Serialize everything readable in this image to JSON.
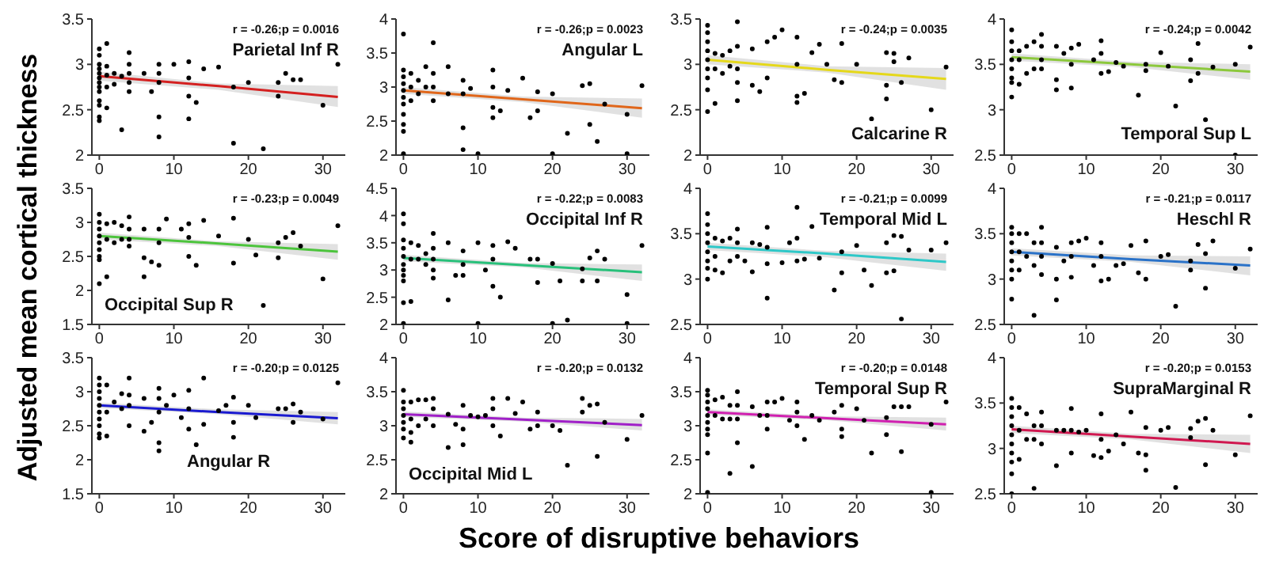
{
  "chart_data": [
    {
      "type": "scatter",
      "xlabel": "Score of disruptive behaviors",
      "ylabel": "Adjusted mean cortical thickness",
      "annotations": [
        "r = -0.26;p = 0.0016",
        "Parietal Inf R"
      ],
      "xlim": [
        -1,
        33
      ],
      "xticks": [
        0,
        10,
        20,
        30
      ],
      "ylim": [
        2,
        3.5
      ],
      "yticks": [
        2,
        2.5,
        3,
        3.5
      ],
      "series": [
        {
          "marker": "circle",
          "color": "#000000",
          "x": [
            0,
            0,
            0,
            0,
            0,
            0,
            0,
            0,
            0,
            0,
            0,
            0,
            0,
            1,
            1,
            1,
            1,
            1,
            2,
            2,
            3,
            3,
            4,
            4,
            4,
            4,
            4,
            6,
            7,
            8,
            8,
            8,
            8,
            8,
            10,
            12,
            12,
            12,
            12,
            13,
            14,
            16,
            18,
            18,
            20,
            22,
            24,
            24,
            25,
            26,
            27,
            30,
            32
          ],
          "values": [
            3.17,
            3.1,
            3.0,
            2.95,
            2.9,
            2.85,
            2.8,
            2.75,
            2.7,
            2.6,
            2.55,
            2.42,
            2.38,
            3.23,
            2.98,
            2.88,
            2.75,
            2.52,
            2.9,
            2.78,
            2.87,
            2.28,
            3.13,
            3.0,
            2.9,
            2.8,
            2.7,
            2.9,
            2.7,
            3.0,
            2.9,
            2.8,
            2.42,
            2.2,
            3.0,
            3.03,
            2.85,
            2.65,
            2.4,
            2.58,
            2.95,
            2.97,
            2.75,
            2.13,
            2.8,
            2.07,
            2.8,
            2.65,
            2.9,
            2.83,
            2.83,
            2.55,
            3.0
          ]
        },
        {
          "type": "line",
          "marker": "none",
          "color": "#d42020",
          "x": [
            0,
            16,
            32
          ],
          "values": [
            2.87,
            2.76,
            2.64
          ],
          "lower": [
            2.82,
            2.72,
            2.53
          ],
          "upper": [
            2.92,
            2.79,
            2.76
          ]
        }
      ]
    },
    {
      "type": "scatter",
      "annotations": [
        "r = -0.26;p = 0.0023",
        "Angular L"
      ],
      "xlim": [
        -1,
        33
      ],
      "xticks": [
        0,
        10,
        20,
        30
      ],
      "ylim": [
        2,
        4
      ],
      "yticks": [
        2,
        2.5,
        3,
        3.5,
        4
      ],
      "series": [
        {
          "marker": "circle",
          "color": "#000000",
          "x": [
            0,
            0,
            0,
            0,
            0,
            0,
            0,
            0,
            0,
            0,
            0,
            1,
            1,
            1,
            2,
            2,
            3,
            3,
            4,
            4,
            4,
            4,
            6,
            6,
            8,
            8,
            8,
            8,
            9,
            10,
            12,
            12,
            12,
            12,
            13,
            14,
            16,
            17,
            18,
            18,
            20,
            20,
            22,
            24,
            25,
            25,
            26,
            27,
            30,
            30,
            32
          ],
          "values": [
            3.78,
            3.25,
            3.15,
            3.05,
            2.95,
            2.85,
            2.75,
            2.6,
            2.45,
            2.35,
            2.02,
            3.2,
            3.0,
            2.8,
            3.1,
            2.9,
            3.3,
            3.0,
            3.65,
            3.2,
            3.0,
            2.8,
            3.3,
            2.9,
            3.1,
            2.9,
            2.4,
            2.08,
            2.98,
            2.02,
            3.25,
            3.0,
            2.7,
            2.55,
            2.65,
            2.95,
            3.13,
            2.55,
            2.93,
            2.65,
            2.9,
            2.02,
            2.32,
            3.02,
            3.05,
            2.45,
            2.2,
            2.75,
            2.6,
            2.02,
            3.02
          ]
        },
        {
          "type": "line",
          "marker": "none",
          "color": "#e0661a",
          "x": [
            0,
            16,
            32
          ],
          "values": [
            2.95,
            2.82,
            2.69
          ],
          "lower": [
            2.9,
            2.78,
            2.55
          ],
          "upper": [
            3.0,
            2.86,
            2.83
          ]
        }
      ]
    },
    {
      "type": "scatter",
      "annotations": [
        "r = -0.24;p = 0.0035",
        "Calcarine R"
      ],
      "xlim": [
        -1,
        33
      ],
      "xticks": [
        0,
        10,
        20,
        30
      ],
      "ylim": [
        2,
        3.5
      ],
      "yticks": [
        2,
        2.5,
        3,
        3.5
      ],
      "series": [
        {
          "marker": "circle",
          "color": "#000000",
          "x": [
            0,
            0,
            0,
            0,
            0,
            0,
            0,
            0,
            0,
            1,
            1,
            1,
            2,
            2,
            3,
            3,
            4,
            4,
            4,
            4,
            4,
            6,
            6,
            7,
            8,
            8,
            9,
            10,
            12,
            12,
            12,
            12,
            13,
            14,
            15,
            16,
            17,
            18,
            18,
            20,
            22,
            24,
            24,
            24,
            25,
            25,
            26,
            27,
            30,
            32
          ],
          "values": [
            3.43,
            3.35,
            3.25,
            3.15,
            3.05,
            2.95,
            2.85,
            2.72,
            2.48,
            3.12,
            2.95,
            2.57,
            3.1,
            2.9,
            3.15,
            2.98,
            3.47,
            3.2,
            2.95,
            2.8,
            2.6,
            3.17,
            2.77,
            2.7,
            3.25,
            2.85,
            3.3,
            3.38,
            3.3,
            3.0,
            2.65,
            2.58,
            2.68,
            3.13,
            3.22,
            3.0,
            2.83,
            3.23,
            2.8,
            3.0,
            2.4,
            3.13,
            2.77,
            2.62,
            3.12,
            3.03,
            2.8,
            3.07,
            2.5,
            2.97
          ]
        },
        {
          "type": "line",
          "marker": "none",
          "color": "#e5d81a",
          "x": [
            0,
            16,
            32
          ],
          "values": [
            3.05,
            2.94,
            2.84
          ],
          "lower": [
            3.0,
            2.91,
            2.72
          ],
          "upper": [
            3.1,
            2.98,
            2.96
          ]
        }
      ]
    },
    {
      "type": "scatter",
      "annotations": [
        "r = -0.24;p = 0.0042",
        "Temporal Sup L"
      ],
      "xlim": [
        -1,
        33
      ],
      "xticks": [
        0,
        10,
        20,
        30
      ],
      "ylim": [
        2.5,
        4
      ],
      "yticks": [
        2.5,
        3,
        3.5,
        4
      ],
      "series": [
        {
          "marker": "circle",
          "color": "#000000",
          "x": [
            0,
            0,
            0,
            0,
            0,
            0,
            0,
            0,
            1,
            1,
            1,
            2,
            2,
            3,
            3,
            4,
            4,
            4,
            4,
            6,
            6,
            6,
            7,
            8,
            8,
            8,
            9,
            11,
            12,
            12,
            12,
            13,
            14,
            15,
            17,
            18,
            18,
            20,
            21,
            22,
            24,
            24,
            25,
            25,
            26,
            27,
            30,
            30,
            32
          ],
          "values": [
            3.88,
            3.75,
            3.65,
            3.55,
            3.45,
            3.35,
            3.3,
            3.14,
            3.65,
            3.55,
            3.28,
            3.7,
            3.4,
            3.75,
            3.45,
            3.83,
            3.7,
            3.55,
            3.45,
            3.7,
            3.33,
            3.22,
            3.62,
            3.68,
            3.5,
            3.24,
            3.72,
            3.55,
            3.76,
            3.62,
            3.4,
            3.42,
            3.52,
            3.48,
            3.16,
            3.5,
            3.43,
            3.63,
            3.48,
            3.04,
            3.55,
            3.32,
            3.73,
            3.4,
            2.89,
            3.47,
            3.5,
            2.5,
            3.69
          ]
        },
        {
          "type": "line",
          "marker": "none",
          "color": "#8cc83c",
          "x": [
            0,
            16,
            32
          ],
          "values": [
            3.58,
            3.5,
            3.42
          ],
          "lower": [
            3.54,
            3.47,
            3.33
          ],
          "upper": [
            3.62,
            3.53,
            3.5
          ]
        }
      ]
    },
    {
      "type": "scatter",
      "annotations": [
        "r = -0.23;p = 0.0049",
        "Occipital Sup R"
      ],
      "xlim": [
        -1,
        33
      ],
      "xticks": [
        0,
        10,
        20,
        30
      ],
      "ylim": [
        1.5,
        3.5
      ],
      "yticks": [
        1.5,
        2,
        2.5,
        3,
        3.5
      ],
      "series": [
        {
          "marker": "circle",
          "color": "#000000",
          "x": [
            0,
            0,
            0,
            0,
            0,
            0,
            0,
            0,
            0,
            1,
            1,
            1,
            2,
            2,
            3,
            3,
            4,
            4,
            4,
            4,
            6,
            6,
            6,
            7,
            8,
            8,
            8,
            9,
            11,
            12,
            12,
            12,
            13,
            14,
            16,
            18,
            18,
            20,
            21,
            22,
            24,
            24,
            25,
            26,
            27,
            30,
            32
          ],
          "values": [
            3.12,
            3.0,
            2.9,
            2.8,
            2.7,
            2.6,
            2.5,
            2.45,
            2.1,
            2.98,
            2.75,
            2.2,
            3.0,
            2.7,
            2.95,
            2.75,
            3.08,
            2.9,
            2.75,
            2.65,
            2.9,
            2.48,
            2.2,
            2.42,
            2.9,
            2.7,
            2.37,
            3.05,
            2.9,
            2.98,
            2.78,
            2.5,
            2.37,
            3.03,
            2.8,
            3.06,
            2.4,
            2.75,
            2.52,
            1.78,
            2.7,
            2.48,
            2.78,
            2.85,
            2.65,
            2.17,
            2.95
          ]
        },
        {
          "type": "line",
          "marker": "none",
          "color": "#4cc43c",
          "x": [
            0,
            16,
            32
          ],
          "values": [
            2.8,
            2.69,
            2.57
          ],
          "lower": [
            2.75,
            2.65,
            2.45
          ],
          "upper": [
            2.85,
            2.72,
            2.68
          ]
        }
      ]
    },
    {
      "type": "scatter",
      "annotations": [
        "r = -0.22;p = 0.0083",
        "Occipital Inf R"
      ],
      "xlim": [
        -1,
        33
      ],
      "xticks": [
        0,
        10,
        20,
        30
      ],
      "ylim": [
        2,
        4.5
      ],
      "yticks": [
        2,
        2.5,
        3,
        3.5,
        4,
        4.5
      ],
      "series": [
        {
          "marker": "circle",
          "color": "#000000",
          "x": [
            0,
            0,
            0,
            0,
            0,
            0,
            0,
            0,
            0,
            0,
            0,
            1,
            1,
            1,
            2,
            2,
            3,
            3,
            4,
            4,
            4,
            4,
            4,
            6,
            6,
            7,
            8,
            8,
            8,
            10,
            10,
            11,
            12,
            12,
            12,
            13,
            14,
            15,
            17,
            18,
            18,
            20,
            20,
            21,
            22,
            24,
            24,
            25,
            26,
            26,
            27,
            30,
            30,
            32
          ],
          "values": [
            4.03,
            3.85,
            3.55,
            3.4,
            3.25,
            3.1,
            3.0,
            2.9,
            2.8,
            2.4,
            2.02,
            3.5,
            3.2,
            2.42,
            3.45,
            3.2,
            3.3,
            3.1,
            3.67,
            3.4,
            3.2,
            3.0,
            2.85,
            3.5,
            2.45,
            2.9,
            3.35,
            3.1,
            2.9,
            3.5,
            2.02,
            3.0,
            3.45,
            3.2,
            2.7,
            2.5,
            3.52,
            3.4,
            3.2,
            3.2,
            2.77,
            3.12,
            2.02,
            2.8,
            2.08,
            3.02,
            2.8,
            3.22,
            3.35,
            2.8,
            3.2,
            2.55,
            2.02,
            3.45
          ]
        },
        {
          "type": "line",
          "marker": "none",
          "color": "#28c07a",
          "x": [
            0,
            16,
            32
          ],
          "values": [
            3.22,
            3.09,
            2.96
          ],
          "lower": [
            3.16,
            3.05,
            2.8
          ],
          "upper": [
            3.28,
            3.13,
            3.1
          ]
        }
      ]
    },
    {
      "type": "scatter",
      "annotations": [
        "r = -0.21;p = 0.0099",
        "Temporal Mid L"
      ],
      "xlim": [
        -1,
        33
      ],
      "xticks": [
        0,
        10,
        20,
        30
      ],
      "ylim": [
        2.5,
        4
      ],
      "yticks": [
        2.5,
        3,
        3.5,
        4
      ],
      "series": [
        {
          "marker": "circle",
          "color": "#000000",
          "x": [
            0,
            0,
            0,
            0,
            0,
            0,
            0,
            0,
            1,
            1,
            1,
            2,
            2,
            3,
            3,
            4,
            4,
            4,
            5,
            6,
            6,
            7,
            8,
            8,
            8,
            8,
            10,
            11,
            12,
            12,
            12,
            13,
            14,
            15,
            17,
            18,
            18,
            20,
            21,
            22,
            24,
            24,
            25,
            25,
            26,
            26,
            27,
            30,
            32
          ],
          "values": [
            3.72,
            3.6,
            3.5,
            3.4,
            3.3,
            3.2,
            3.12,
            3.0,
            3.45,
            3.25,
            3.1,
            3.42,
            3.07,
            3.45,
            3.2,
            3.55,
            3.4,
            3.25,
            3.2,
            3.4,
            3.08,
            3.38,
            3.57,
            3.35,
            3.17,
            2.79,
            3.18,
            3.4,
            3.79,
            3.45,
            3.2,
            3.22,
            3.58,
            3.23,
            2.88,
            3.3,
            3.07,
            3.37,
            3.1,
            2.93,
            3.4,
            3.07,
            3.48,
            3.09,
            3.47,
            2.56,
            3.32,
            3.32,
            3.4
          ]
        },
        {
          "type": "line",
          "marker": "none",
          "color": "#2ec8c8",
          "x": [
            0,
            16,
            32
          ],
          "values": [
            3.36,
            3.28,
            3.19
          ],
          "lower": [
            3.32,
            3.24,
            3.09
          ],
          "upper": [
            3.4,
            3.31,
            3.28
          ]
        }
      ]
    },
    {
      "type": "scatter",
      "annotations": [
        "r = -0.21;p = 0.0117",
        "Heschl R"
      ],
      "xlim": [
        -1,
        33
      ],
      "xticks": [
        0,
        10,
        20,
        30
      ],
      "ylim": [
        2.5,
        4
      ],
      "yticks": [
        2.5,
        3,
        3.5,
        4
      ],
      "series": [
        {
          "marker": "circle",
          "color": "#000000",
          "x": [
            0,
            0,
            0,
            0,
            0,
            0,
            0,
            0,
            1,
            1,
            1,
            2,
            2,
            3,
            3,
            3,
            4,
            4,
            4,
            4,
            6,
            6,
            6,
            7,
            8,
            8,
            8,
            9,
            10,
            11,
            12,
            12,
            12,
            13,
            14,
            15,
            16,
            17,
            18,
            18,
            20,
            21,
            22,
            24,
            24,
            25,
            26,
            26,
            27,
            30,
            32
          ],
          "values": [
            3.57,
            3.5,
            3.4,
            3.3,
            3.2,
            3.1,
            3.0,
            2.78,
            3.5,
            3.3,
            3.1,
            3.5,
            3.25,
            3.4,
            3.15,
            2.6,
            3.57,
            3.4,
            3.25,
            3.05,
            3.35,
            3.0,
            2.77,
            3.2,
            3.4,
            3.25,
            3.02,
            3.42,
            3.45,
            3.15,
            3.4,
            3.25,
            2.98,
            3.0,
            3.15,
            3.17,
            3.37,
            3.07,
            3.42,
            3.0,
            3.25,
            3.27,
            2.7,
            3.2,
            3.1,
            3.38,
            3.28,
            2.9,
            3.42,
            3.12,
            3.33
          ]
        },
        {
          "type": "line",
          "marker": "none",
          "color": "#2a72c8",
          "x": [
            0,
            16,
            32
          ],
          "values": [
            3.3,
            3.22,
            3.15
          ],
          "lower": [
            3.26,
            3.19,
            3.04
          ],
          "upper": [
            3.34,
            3.26,
            3.25
          ]
        }
      ]
    },
    {
      "type": "scatter",
      "annotations": [
        "r = -0.20;p = 0.0125",
        "Angular R"
      ],
      "xlim": [
        -1,
        33
      ],
      "xticks": [
        0,
        10,
        20,
        30
      ],
      "ylim": [
        1.5,
        3.5
      ],
      "yticks": [
        1.5,
        2,
        2.5,
        3,
        3.5
      ],
      "series": [
        {
          "marker": "circle",
          "color": "#000000",
          "x": [
            0,
            0,
            0,
            0,
            0,
            0,
            0,
            0,
            0,
            0,
            1,
            1,
            1,
            2,
            3,
            3,
            4,
            4,
            4,
            4,
            6,
            6,
            7,
            8,
            8,
            8,
            8,
            8,
            9,
            10,
            11,
            12,
            12,
            12,
            13,
            14,
            14,
            16,
            17,
            18,
            18,
            18,
            20,
            21,
            24,
            25,
            26,
            26,
            27,
            30,
            32
          ],
          "values": [
            3.2,
            3.1,
            3.0,
            2.9,
            2.8,
            2.7,
            2.6,
            2.5,
            2.38,
            2.32,
            3.1,
            2.7,
            2.35,
            2.85,
            2.97,
            2.75,
            3.2,
            2.95,
            2.8,
            2.5,
            2.9,
            2.42,
            2.55,
            3.05,
            2.9,
            2.7,
            2.25,
            2.13,
            2.8,
            2.95,
            2.62,
            3.02,
            2.75,
            2.45,
            2.22,
            3.2,
            2.52,
            2.72,
            2.8,
            2.92,
            2.55,
            2.33,
            2.8,
            2.62,
            2.75,
            2.75,
            2.82,
            2.55,
            2.7,
            2.6,
            3.13
          ]
        },
        {
          "type": "line",
          "marker": "none",
          "color": "#1a1ad0",
          "x": [
            0,
            16,
            32
          ],
          "values": [
            2.8,
            2.7,
            2.61
          ],
          "lower": [
            2.76,
            2.67,
            2.52
          ],
          "upper": [
            2.84,
            2.74,
            2.7
          ]
        }
      ]
    },
    {
      "type": "scatter",
      "annotations": [
        "r = -0.20;p = 0.0132",
        "Occipital Mid L"
      ],
      "xlim": [
        -1,
        33
      ],
      "xticks": [
        0,
        10,
        20,
        30
      ],
      "ylim": [
        2,
        4
      ],
      "yticks": [
        2,
        2.5,
        3,
        3.5,
        4
      ],
      "series": [
        {
          "marker": "circle",
          "color": "#000000",
          "x": [
            0,
            0,
            0,
            0,
            0,
            0,
            0,
            1,
            1,
            1,
            1,
            2,
            2,
            3,
            3,
            4,
            4,
            4,
            6,
            6,
            7,
            8,
            8,
            8,
            9,
            10,
            11,
            12,
            12,
            12,
            13,
            14,
            15,
            16,
            17,
            18,
            18,
            20,
            21,
            22,
            24,
            24,
            25,
            26,
            26,
            27,
            30,
            32
          ],
          "values": [
            3.52,
            3.35,
            3.25,
            3.15,
            3.05,
            2.95,
            2.82,
            3.35,
            3.1,
            2.9,
            2.76,
            3.38,
            3.0,
            3.38,
            3.1,
            3.4,
            3.25,
            3.0,
            3.17,
            2.68,
            3.02,
            3.3,
            2.95,
            2.72,
            3.15,
            3.13,
            3.15,
            3.4,
            3.25,
            3.0,
            2.85,
            3.4,
            3.18,
            3.35,
            2.95,
            3.2,
            3.0,
            3.0,
            2.93,
            2.42,
            3.4,
            3.2,
            3.3,
            3.32,
            2.55,
            3.05,
            2.8,
            3.15
          ]
        },
        {
          "type": "line",
          "marker": "none",
          "color": "#a020c8",
          "x": [
            0,
            16,
            32
          ],
          "values": [
            3.17,
            3.09,
            3.01
          ],
          "lower": [
            3.13,
            3.06,
            2.93
          ],
          "upper": [
            3.21,
            3.12,
            3.1
          ]
        }
      ]
    },
    {
      "type": "scatter",
      "annotations": [
        "r = -0.20;p = 0.0148",
        "Temporal Sup R"
      ],
      "xlim": [
        -1,
        33
      ],
      "xticks": [
        0,
        10,
        20,
        30
      ],
      "ylim": [
        2,
        4
      ],
      "yticks": [
        2,
        2.5,
        3,
        3.5,
        4
      ],
      "series": [
        {
          "marker": "circle",
          "color": "#000000",
          "x": [
            0,
            0,
            0,
            0,
            0,
            0,
            0,
            0,
            0,
            0,
            1,
            1,
            2,
            2,
            3,
            3,
            3,
            4,
            4,
            4,
            4,
            6,
            6,
            7,
            8,
            8,
            8,
            9,
            10,
            11,
            12,
            12,
            12,
            13,
            14,
            15,
            17,
            18,
            18,
            18,
            20,
            21,
            22,
            24,
            24,
            25,
            26,
            26,
            27,
            30,
            30,
            32
          ],
          "values": [
            3.52,
            3.45,
            3.35,
            3.25,
            3.15,
            3.05,
            2.95,
            2.87,
            2.6,
            2.02,
            3.38,
            3.15,
            3.42,
            3.1,
            3.3,
            3.1,
            2.3,
            3.5,
            3.3,
            3.1,
            2.75,
            3.28,
            2.4,
            3.15,
            3.35,
            3.15,
            2.95,
            3.35,
            3.4,
            3.08,
            3.35,
            3.2,
            3.0,
            2.8,
            3.15,
            3.08,
            3.2,
            3.3,
            2.95,
            2.84,
            3.25,
            3.08,
            2.6,
            3.12,
            2.87,
            3.28,
            3.28,
            2.62,
            3.28,
            3.02,
            2.02,
            3.35
          ]
        },
        {
          "type": "line",
          "marker": "none",
          "color": "#d020b0",
          "x": [
            0,
            16,
            32
          ],
          "values": [
            3.2,
            3.11,
            3.02
          ],
          "lower": [
            3.16,
            3.08,
            2.93
          ],
          "upper": [
            3.24,
            3.14,
            3.12
          ]
        }
      ]
    },
    {
      "type": "scatter",
      "annotations": [
        "r = -0.20;p = 0.0153",
        "SupraMarginal R"
      ],
      "xlim": [
        -1,
        33
      ],
      "xticks": [
        0,
        10,
        20,
        30
      ],
      "ylim": [
        2.5,
        4
      ],
      "yticks": [
        2.5,
        3,
        3.5,
        4
      ],
      "series": [
        {
          "marker": "circle",
          "color": "#000000",
          "x": [
            0,
            0,
            0,
            0,
            0,
            0,
            0,
            0,
            0,
            0,
            1,
            1,
            1,
            2,
            2,
            3,
            3,
            3,
            4,
            4,
            4,
            6,
            6,
            7,
            8,
            8,
            8,
            9,
            10,
            11,
            12,
            12,
            12,
            13,
            14,
            15,
            16,
            17,
            18,
            18,
            18,
            20,
            21,
            22,
            24,
            24,
            25,
            26,
            26,
            27,
            30,
            32
          ],
          "values": [
            3.55,
            3.45,
            3.35,
            3.25,
            3.15,
            3.05,
            2.95,
            2.85,
            2.72,
            2.5,
            3.45,
            3.2,
            2.88,
            3.38,
            3.1,
            3.25,
            3.1,
            2.56,
            3.4,
            3.25,
            3.05,
            3.2,
            2.81,
            3.2,
            3.44,
            3.2,
            2.95,
            3.18,
            3.2,
            2.92,
            3.38,
            3.1,
            2.9,
            2.97,
            3.15,
            3.05,
            3.4,
            2.95,
            3.23,
            2.93,
            2.76,
            3.2,
            3.23,
            2.57,
            3.22,
            3.12,
            3.3,
            3.33,
            2.82,
            3.2,
            2.93,
            3.36
          ]
        },
        {
          "type": "line",
          "marker": "none",
          "color": "#d01850",
          "x": [
            0,
            16,
            32
          ],
          "values": [
            3.21,
            3.13,
            3.05
          ],
          "lower": [
            3.17,
            3.1,
            2.95
          ],
          "upper": [
            3.25,
            3.16,
            3.15
          ]
        }
      ]
    }
  ]
}
